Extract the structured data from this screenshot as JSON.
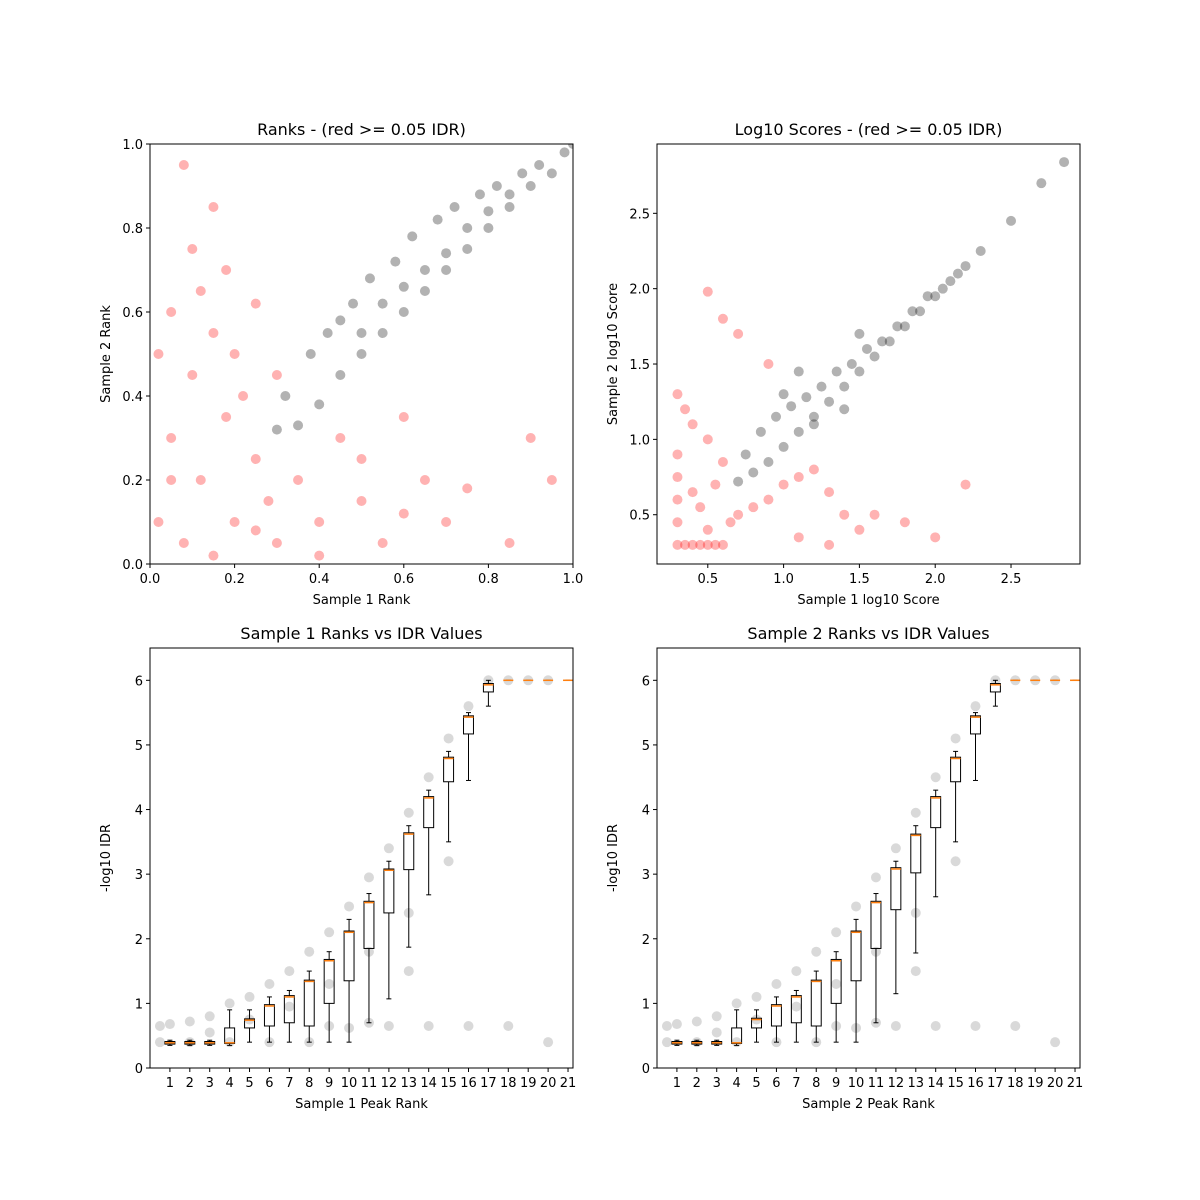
{
  "chart_data": [
    {
      "type": "scatter",
      "title": "Ranks - (red >= 0.05 IDR)",
      "xlabel": "Sample 1 Rank",
      "ylabel": "Sample 2 Rank",
      "xlim": [
        0,
        1
      ],
      "ylim": [
        0,
        1
      ],
      "alpha": 0.3,
      "xticks": [
        {
          "value": 0,
          "label": "0.0"
        },
        0.2,
        0.4,
        0.6,
        0.8,
        {
          "value": 1,
          "label": "1.0"
        }
      ],
      "yticks": [
        {
          "value": 0,
          "label": "0.0"
        },
        0.2,
        0.4,
        0.6,
        0.8,
        {
          "value": 1,
          "label": "1.0"
        }
      ],
      "series": [
        {
          "color": "#ff0000",
          "x": [
            0.02,
            0.05,
            0.08,
            0.1,
            0.12,
            0.15,
            0.18,
            0.2,
            0.22,
            0.25,
            0.28,
            0.3,
            0.05,
            0.1,
            0.15,
            0.2,
            0.25,
            0.35,
            0.4,
            0.45,
            0.5,
            0.55,
            0.6,
            0.65,
            0.7,
            0.08,
            0.12,
            0.18,
            0.3,
            0.4,
            0.5,
            0.6,
            0.75,
            0.85,
            0.95,
            0.05,
            0.15,
            0.25,
            0.02,
            0.9
          ],
          "values": [
            0.1,
            0.3,
            0.05,
            0.45,
            0.2,
            0.55,
            0.35,
            0.1,
            0.4,
            0.25,
            0.15,
            0.05,
            0.6,
            0.75,
            0.85,
            0.5,
            0.62,
            0.2,
            0.1,
            0.3,
            0.15,
            0.05,
            0.35,
            0.2,
            0.1,
            0.95,
            0.65,
            0.7,
            0.45,
            0.02,
            0.25,
            0.12,
            0.18,
            0.05,
            0.2,
            0.2,
            0.02,
            0.08,
            0.5,
            0.3
          ]
        },
        {
          "color": "#000000",
          "x": [
            0.3,
            0.32,
            0.35,
            0.38,
            0.4,
            0.42,
            0.45,
            0.48,
            0.5,
            0.52,
            0.55,
            0.58,
            0.6,
            0.62,
            0.65,
            0.68,
            0.7,
            0.72,
            0.75,
            0.78,
            0.8,
            0.82,
            0.85,
            0.88,
            0.9,
            0.92,
            0.95,
            0.98,
            1.0,
            0.45,
            0.55,
            0.65,
            0.75,
            0.85,
            0.5,
            0.6,
            0.7,
            0.8
          ],
          "values": [
            0.32,
            0.4,
            0.33,
            0.5,
            0.38,
            0.55,
            0.45,
            0.62,
            0.5,
            0.68,
            0.55,
            0.72,
            0.6,
            0.78,
            0.65,
            0.82,
            0.7,
            0.85,
            0.75,
            0.88,
            0.8,
            0.9,
            0.85,
            0.93,
            0.9,
            0.95,
            0.93,
            0.98,
            1.0,
            0.58,
            0.62,
            0.7,
            0.8,
            0.88,
            0.55,
            0.66,
            0.74,
            0.84
          ]
        }
      ]
    },
    {
      "type": "scatter",
      "title": "Log10 Scores - (red >= 0.05 IDR)",
      "xlabel": "Sample 1 log10 Score",
      "ylabel": "Sample 2 log10 Score",
      "xlim": [
        0.165,
        2.955
      ],
      "ylim": [
        0.173,
        2.96
      ],
      "alpha": 0.3,
      "xticks": [
        0.5,
        {
          "value": 1,
          "label": "1.0"
        },
        1.5,
        {
          "value": 2,
          "label": "2.0"
        },
        2.5
      ],
      "yticks": [
        0.5,
        {
          "value": 1,
          "label": "1.0"
        },
        1.5,
        {
          "value": 2,
          "label": "2.0"
        },
        2.5
      ],
      "series": [
        {
          "color": "#ff0000",
          "x": [
            0.3,
            0.3,
            0.3,
            0.3,
            0.3,
            0.3,
            0.35,
            0.4,
            0.45,
            0.5,
            0.55,
            0.6,
            0.65,
            0.7,
            0.8,
            0.9,
            1.0,
            1.1,
            1.2,
            1.3,
            1.4,
            1.5,
            0.4,
            0.5,
            0.6,
            0.45,
            0.55,
            0.5,
            0.6,
            0.7,
            0.9,
            1.1,
            1.3,
            0.35,
            0.4,
            1.6,
            1.8,
            2.0,
            2.2,
            0.5
          ],
          "values": [
            0.3,
            0.45,
            0.6,
            0.75,
            0.9,
            1.3,
            0.3,
            0.3,
            0.3,
            0.3,
            0.3,
            0.3,
            0.45,
            0.5,
            0.55,
            0.6,
            0.7,
            0.75,
            0.8,
            0.65,
            0.5,
            0.4,
            1.1,
            1.0,
            0.85,
            0.55,
            0.7,
            1.98,
            1.8,
            1.7,
            1.5,
            0.35,
            0.3,
            1.2,
            0.65,
            0.5,
            0.45,
            0.35,
            0.7,
            0.4
          ]
        },
        {
          "color": "#000000",
          "x": [
            0.7,
            0.75,
            0.8,
            0.85,
            0.9,
            0.95,
            1.0,
            1.05,
            1.1,
            1.15,
            1.2,
            1.25,
            1.3,
            1.35,
            1.4,
            1.45,
            1.5,
            1.55,
            1.6,
            1.65,
            1.7,
            1.75,
            1.8,
            1.85,
            1.9,
            1.95,
            2.0,
            2.05,
            2.1,
            2.15,
            2.2,
            2.3,
            2.5,
            2.7,
            2.85,
            1.0,
            1.2,
            1.4,
            1.1,
            1.5
          ],
          "values": [
            0.72,
            0.9,
            0.78,
            1.05,
            0.85,
            1.15,
            0.95,
            1.22,
            1.05,
            1.28,
            1.15,
            1.35,
            1.25,
            1.45,
            1.35,
            1.5,
            1.45,
            1.6,
            1.55,
            1.65,
            1.65,
            1.75,
            1.75,
            1.85,
            1.85,
            1.95,
            1.95,
            2.0,
            2.05,
            2.1,
            2.15,
            2.25,
            2.45,
            2.7,
            2.84,
            1.3,
            1.1,
            1.2,
            1.45,
            1.7
          ]
        }
      ]
    },
    {
      "type": "box",
      "title": "Sample 1 Ranks vs IDR Values",
      "xlabel": "Sample 1 Peak Rank",
      "ylabel": "-log10 IDR",
      "xlim": [
        0,
        21.25
      ],
      "ylim": [
        0,
        6.5
      ],
      "alpha": 0.15,
      "xticks": [
        1,
        2,
        3,
        4,
        5,
        6,
        7,
        8,
        9,
        10,
        11,
        12,
        13,
        14,
        15,
        16,
        17,
        18,
        19,
        20,
        21
      ],
      "yticks": [
        0,
        1,
        2,
        3,
        4,
        5,
        6
      ],
      "series": [
        {
          "color": "#000000",
          "x": [
            0.5,
            1,
            2,
            3,
            4,
            5,
            6,
            7,
            8,
            9,
            10,
            11,
            12,
            13,
            14,
            15,
            16,
            17,
            18,
            19,
            20,
            3,
            5,
            7,
            9,
            11,
            13,
            15,
            0.5,
            2,
            4,
            6,
            8,
            10,
            12,
            14,
            16,
            18,
            20,
            9,
            11,
            13
          ],
          "values": [
            0.65,
            0.68,
            0.72,
            0.8,
            1.0,
            1.1,
            1.3,
            1.5,
            1.8,
            2.1,
            2.5,
            2.95,
            3.4,
            3.95,
            4.5,
            5.1,
            5.6,
            6.0,
            6.0,
            6.0,
            6.0,
            0.55,
            0.75,
            0.95,
            1.3,
            1.8,
            2.4,
            3.2,
            0.4,
            0.4,
            0.4,
            0.4,
            0.4,
            0.62,
            0.65,
            0.65,
            0.65,
            0.65,
            0.4,
            0.65,
            0.7,
            1.5
          ]
        }
      ],
      "box_color": "#000000",
      "median_color": "#ff7f0e",
      "boxes": {
        "positions": [
          1,
          2,
          3,
          4,
          5,
          6,
          7,
          8,
          9,
          10,
          11,
          12,
          13,
          14,
          15,
          16,
          17,
          18,
          19,
          20,
          21
        ],
        "median": [
          0.39,
          0.39,
          0.39,
          0.39,
          0.74,
          0.96,
          1.1,
          1.34,
          1.66,
          2.1,
          2.56,
          3.06,
          3.62,
          4.18,
          4.79,
          5.43,
          5.93,
          6.0,
          6.0,
          6.0,
          6.0
        ],
        "q1": [
          0.37,
          0.37,
          0.37,
          0.38,
          0.62,
          0.65,
          0.7,
          0.65,
          1.0,
          1.35,
          1.85,
          2.4,
          3.07,
          3.72,
          4.43,
          5.17,
          5.82,
          6.0,
          6.0,
          6.0,
          6.0
        ],
        "q3": [
          0.41,
          0.41,
          0.41,
          0.62,
          0.76,
          0.98,
          1.12,
          1.36,
          1.68,
          2.12,
          2.58,
          3.08,
          3.64,
          4.2,
          4.81,
          5.45,
          5.95,
          6.0,
          6.0,
          6.0,
          6.0
        ],
        "whislo": [
          0.35,
          0.35,
          0.35,
          0.35,
          0.4,
          0.4,
          0.4,
          0.4,
          0.4,
          0.4,
          0.7,
          1.07,
          1.87,
          2.68,
          3.5,
          4.45,
          5.6,
          6.0,
          6.0,
          6.0,
          6.0
        ],
        "whishi": [
          0.43,
          0.43,
          0.43,
          0.9,
          0.9,
          1.1,
          1.2,
          1.5,
          1.8,
          2.3,
          2.7,
          3.2,
          3.75,
          4.3,
          4.9,
          5.5,
          6.0,
          6.0,
          6.0,
          6.0,
          6.0
        ]
      }
    },
    {
      "type": "box",
      "title": "Sample 2 Ranks vs IDR Values",
      "xlabel": "Sample 2 Peak Rank",
      "ylabel": "-log10 IDR",
      "xlim": [
        0,
        21.25
      ],
      "ylim": [
        0,
        6.5
      ],
      "alpha": 0.15,
      "xticks": [
        1,
        2,
        3,
        4,
        5,
        6,
        7,
        8,
        9,
        10,
        11,
        12,
        13,
        14,
        15,
        16,
        17,
        18,
        19,
        20,
        21
      ],
      "yticks": [
        0,
        1,
        2,
        3,
        4,
        5,
        6
      ],
      "series": [
        {
          "color": "#000000",
          "x": [
            0.5,
            1,
            2,
            3,
            4,
            5,
            6,
            7,
            8,
            9,
            10,
            11,
            12,
            13,
            14,
            15,
            16,
            17,
            18,
            19,
            20,
            3,
            5,
            7,
            9,
            11,
            13,
            15,
            0.5,
            2,
            4,
            6,
            8,
            10,
            12,
            14,
            16,
            18,
            20,
            9,
            11,
            13
          ],
          "values": [
            0.65,
            0.68,
            0.72,
            0.8,
            1.0,
            1.1,
            1.3,
            1.5,
            1.8,
            2.1,
            2.5,
            2.95,
            3.4,
            3.95,
            4.5,
            5.1,
            5.6,
            6.0,
            6.0,
            6.0,
            6.0,
            0.55,
            0.75,
            0.95,
            1.3,
            1.8,
            2.4,
            3.2,
            0.4,
            0.4,
            0.4,
            0.4,
            0.4,
            0.62,
            0.65,
            0.65,
            0.65,
            0.65,
            0.4,
            0.65,
            0.7,
            1.5
          ]
        }
      ],
      "box_color": "#000000",
      "median_color": "#ff7f0e",
      "boxes": {
        "positions": [
          1,
          2,
          3,
          4,
          5,
          6,
          7,
          8,
          9,
          10,
          11,
          12,
          13,
          14,
          15,
          16,
          17,
          18,
          19,
          20,
          21
        ],
        "median": [
          0.39,
          0.39,
          0.39,
          0.39,
          0.75,
          0.96,
          1.1,
          1.34,
          1.66,
          2.1,
          2.56,
          3.08,
          3.6,
          4.18,
          4.79,
          5.43,
          5.93,
          6.0,
          6.0,
          6.0,
          6.0
        ],
        "q1": [
          0.37,
          0.37,
          0.37,
          0.38,
          0.62,
          0.65,
          0.7,
          0.65,
          1.0,
          1.35,
          1.85,
          2.45,
          3.02,
          3.72,
          4.43,
          5.17,
          5.82,
          6.0,
          6.0,
          6.0,
          6.0
        ],
        "q3": [
          0.41,
          0.41,
          0.41,
          0.62,
          0.77,
          0.98,
          1.12,
          1.36,
          1.68,
          2.12,
          2.58,
          3.1,
          3.62,
          4.2,
          4.81,
          5.45,
          5.95,
          6.0,
          6.0,
          6.0,
          6.0
        ],
        "whislo": [
          0.35,
          0.35,
          0.35,
          0.35,
          0.4,
          0.4,
          0.4,
          0.4,
          0.4,
          0.4,
          0.7,
          1.15,
          1.78,
          2.65,
          3.5,
          4.45,
          5.6,
          6.0,
          6.0,
          6.0,
          6.0
        ],
        "whishi": [
          0.43,
          0.43,
          0.43,
          0.9,
          0.9,
          1.1,
          1.2,
          1.5,
          1.8,
          2.3,
          2.7,
          3.2,
          3.75,
          4.3,
          4.9,
          5.5,
          6.0,
          6.0,
          6.0,
          6.0,
          6.0
        ]
      }
    }
  ]
}
